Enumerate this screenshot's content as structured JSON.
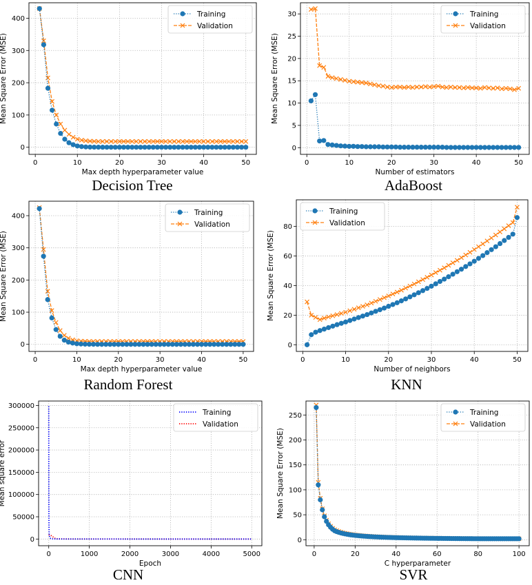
{
  "panels": [
    {
      "caption": "Decision Tree",
      "chart_data": {
        "type": "line",
        "xlabel": "Max depth hyperparameter value",
        "ylabel": "Mean Square Error (MSE)",
        "xlim": [
          -1.5,
          52.5
        ],
        "ylim": [
          -22,
          448
        ],
        "xticks": [
          0,
          10,
          20,
          30,
          40,
          50
        ],
        "yticks": [
          0,
          100,
          200,
          300,
          400
        ],
        "grid": true,
        "legend_position": "top-right",
        "x_range": [
          1,
          50
        ],
        "series": [
          {
            "name": "Training",
            "color": "#1f77b4",
            "linestyle": "dotted",
            "marker": "circle",
            "values": [
              430,
              318,
              183,
              115,
              72,
              43,
              25,
              14,
              8,
              4,
              2,
              1,
              0.5,
              0.3,
              0.2,
              0.1,
              0,
              0,
              0,
              0,
              0,
              0,
              0,
              0,
              0,
              0,
              0,
              0,
              0,
              0,
              0,
              0,
              0,
              0,
              0,
              0,
              0,
              0,
              0,
              0,
              0,
              0,
              0,
              0,
              0,
              0,
              0,
              0,
              0,
              0
            ]
          },
          {
            "name": "Validation",
            "color": "#ff7f0e",
            "linestyle": "dashed",
            "marker": "x",
            "values": [
              430,
              330,
              215,
              142,
              100,
              72,
              53,
              40,
              31,
              25,
              22,
              20,
              19,
              18.5,
              18,
              18,
              18,
              18,
              18,
              18,
              18,
              18,
              18,
              18,
              18,
              18,
              18,
              18,
              18,
              18,
              18,
              18,
              18,
              18,
              18,
              18,
              18,
              18,
              18,
              18,
              18,
              18,
              18,
              18,
              18,
              18,
              18,
              18,
              18,
              18
            ]
          }
        ]
      }
    },
    {
      "caption": "AdaBoost",
      "chart_data": {
        "type": "line",
        "xlabel": "Number of estimators",
        "ylabel": "Mean Square Error (MSE)",
        "xlim": [
          -1.5,
          52.5
        ],
        "ylim": [
          -1.5,
          32.5
        ],
        "xticks": [
          0,
          10,
          20,
          30,
          40,
          50
        ],
        "yticks": [
          0,
          5,
          10,
          15,
          20,
          25,
          30
        ],
        "grid": true,
        "legend_position": "top-right",
        "x_range": [
          1,
          50
        ],
        "series": [
          {
            "name": "Training",
            "color": "#1f77b4",
            "linestyle": "dotted",
            "marker": "circle",
            "values": [
              10.5,
              11.9,
              1.5,
              1.6,
              0.7,
              0.6,
              0.5,
              0.4,
              0.35,
              0.3,
              0.3,
              0.25,
              0.25,
              0.2,
              0.2,
              0.2,
              0.2,
              0.15,
              0.15,
              0.15,
              0.15,
              0.1,
              0.1,
              0.1,
              0.1,
              0.1,
              0.1,
              0.1,
              0.1,
              0.1,
              0.1,
              0.1,
              0.05,
              0.05,
              0.05,
              0.05,
              0.05,
              0.05,
              0.05,
              0.05,
              0.05,
              0.05,
              0.05,
              0.05,
              0.05,
              0.05,
              0.05,
              0.05,
              0.05,
              0.05
            ]
          },
          {
            "name": "Validation",
            "color": "#ff7f0e",
            "linestyle": "dashed",
            "marker": "x",
            "values": [
              31,
              31.2,
              18.4,
              18,
              16,
              15.7,
              15.5,
              15.3,
              15.1,
              14.9,
              14.8,
              14.7,
              14.6,
              14.5,
              14.3,
              14.1,
              13.9,
              13.8,
              13.6,
              13.5,
              13.6,
              13.6,
              13.5,
              13.6,
              13.5,
              13.6,
              13.6,
              13.7,
              13.6,
              13.7,
              13.8,
              13.6,
              13.5,
              13.6,
              13.5,
              13.5,
              13.4,
              13.5,
              13.4,
              13.4,
              13.3,
              13.5,
              13.4,
              13.3,
              13.4,
              13.2,
              13.3,
              13.2,
              13.0,
              13.3
            ]
          }
        ]
      }
    },
    {
      "caption": "Random Forest",
      "chart_data": {
        "type": "line",
        "xlabel": "Max depth hyperparameter value",
        "ylabel": "Mean Square Error (MSE)",
        "xlim": [
          -1.5,
          52.5
        ],
        "ylim": [
          -22,
          445
        ],
        "xticks": [
          0,
          10,
          20,
          30,
          40,
          50
        ],
        "yticks": [
          0,
          100,
          200,
          300,
          400
        ],
        "grid": true,
        "legend_position": "top-right",
        "x_range": [
          1,
          50
        ],
        "series": [
          {
            "name": "Training",
            "color": "#1f77b4",
            "linestyle": "dotted",
            "marker": "circle",
            "values": [
              422,
              274,
              139,
              82,
              46,
              25,
              13,
              7,
              4,
              2,
              1,
              0.5,
              0.3,
              0.2,
              0.1,
              0,
              0,
              0,
              0,
              0,
              0,
              0,
              0,
              0,
              0,
              0,
              0,
              0,
              0,
              0,
              0,
              0,
              0,
              0,
              0,
              0,
              0,
              0,
              0,
              0,
              0,
              0,
              0,
              0,
              0,
              0,
              0,
              0,
              0,
              0
            ]
          },
          {
            "name": "Validation",
            "color": "#ff7f0e",
            "linestyle": "dashed",
            "marker": "x",
            "values": [
              425,
              295,
              165,
              105,
              68,
              43,
              28,
              19,
              14,
              11,
              10,
              9.5,
              9,
              9,
              9,
              9,
              9,
              9,
              9,
              9,
              9,
              9,
              9,
              9,
              9,
              9,
              9,
              9,
              9,
              9,
              9,
              9,
              9,
              9,
              9,
              9,
              9,
              9,
              9,
              9,
              9,
              9,
              9,
              9,
              9,
              9,
              9,
              9,
              9,
              9
            ]
          }
        ]
      }
    },
    {
      "caption": "KNN",
      "chart_data": {
        "type": "line",
        "xlabel": "Number of neighbors",
        "ylabel": "Mean Square Error (MSE)",
        "xlim": [
          -1.5,
          52.5
        ],
        "ylim": [
          -4.5,
          98
        ],
        "xticks": [
          0,
          10,
          20,
          30,
          40,
          50
        ],
        "yticks": [
          0,
          20,
          40,
          60,
          80
        ],
        "grid": true,
        "legend_position": "top-left",
        "x_range": [
          1,
          50
        ],
        "series": [
          {
            "name": "Training",
            "color": "#1f77b4",
            "linestyle": "dotted",
            "marker": "circle",
            "values": [
              0,
              6.8,
              8.5,
              9.6,
              10.6,
              11.6,
              12.6,
              13.6,
              14.5,
              15.4,
              16.4,
              17.4,
              18.4,
              19.4,
              20.4,
              21.5,
              22.6,
              23.7,
              24.8,
              26.0,
              27.2,
              28.4,
              29.7,
              31.0,
              32.4,
              33.8,
              35.2,
              36.6,
              38.1,
              39.6,
              41.2,
              42.8,
              44.4,
              46.0,
              47.7,
              49.4,
              51.1,
              52.9,
              54.7,
              56.5,
              58.4,
              60.3,
              62.3,
              64.3,
              66.3,
              68.4,
              70.5,
              72.6,
              74.8,
              86
            ]
          },
          {
            "name": "Validation",
            "color": "#ff7f0e",
            "linestyle": "dashed",
            "marker": "x",
            "values": [
              29,
              20,
              18.5,
              17,
              18,
              18.8,
              19.6,
              20.4,
              21.2,
              22,
              23,
              24,
              25,
              26,
              27,
              28.2,
              29.4,
              30.6,
              31.8,
              33.0,
              34.3,
              35.6,
              36.9,
              38.3,
              39.7,
              41.1,
              42.6,
              44.1,
              45.6,
              47.2,
              48.8,
              50.4,
              52.0,
              53.7,
              55.4,
              57.1,
              58.9,
              60.7,
              62.5,
              64.4,
              66.3,
              68.2,
              70.2,
              72.2,
              74.2,
              76.3,
              78.4,
              80.5,
              82.6,
              93
            ]
          }
        ]
      }
    },
    {
      "caption": "CNN",
      "chart_data": {
        "type": "line",
        "xlabel": "Epoch",
        "ylabel": "Mean square error",
        "xlim": [
          -250,
          5250
        ],
        "ylim": [
          -15000,
          310000
        ],
        "xticks": [
          0,
          1000,
          2000,
          3000,
          4000,
          5000
        ],
        "yticks": [
          0,
          50000,
          100000,
          150000,
          200000,
          250000,
          300000
        ],
        "grid": true,
        "legend_position": "top-right",
        "series": [
          {
            "name": "Training",
            "color": "#0000ff",
            "linestyle": "dotted",
            "x": [
              0,
              2,
              5,
              10,
              20,
              30,
              50,
              100,
              200,
              500,
              1000,
              2000,
              3000,
              4000,
              5000
            ],
            "values": [
              298000,
              120000,
              40000,
              12000,
              5000,
              2500,
              1200,
              500,
              200,
              80,
              40,
              20,
              10,
              5,
              0
            ]
          },
          {
            "name": "Validation",
            "color": "#ff0000",
            "linestyle": "dotted",
            "x": [
              0,
              20,
              40,
              60,
              80,
              100,
              130,
              160,
              200,
              300,
              500,
              1000,
              2000,
              3000,
              4000,
              5000
            ],
            "values": [
              10000,
              9200,
              8500,
              7800,
              6800,
              5200,
              3000,
              1500,
              700,
              300,
              150,
              80,
              40,
              20,
              10,
              0
            ]
          }
        ]
      }
    },
    {
      "caption": "SVR",
      "chart_data": {
        "type": "line",
        "xlabel": "C hyperparameter",
        "ylabel": "Mean Square Error (MSE)",
        "xlim": [
          -4,
          105
        ],
        "ylim": [
          -12,
          278
        ],
        "xticks": [
          0,
          20,
          40,
          60,
          80,
          100
        ],
        "yticks": [
          0,
          50,
          100,
          150,
          200,
          250
        ],
        "grid": true,
        "legend_position": "top-right",
        "x_range": [
          1,
          100
        ],
        "series": [
          {
            "name": "Training",
            "color": "#1f77b4",
            "linestyle": "dotted",
            "marker": "circle",
            "values": [
              265,
              110,
              80,
              60,
              46,
              37,
              30,
              25,
              21,
              18
            ]
          },
          {
            "name": "Validation",
            "color": "#ff7f0e",
            "linestyle": "dashed",
            "marker": "x",
            "values": [
              270,
              115,
              83,
              62,
              48,
              39,
              32,
              27,
              23,
              20
            ]
          }
        ]
      }
    }
  ]
}
